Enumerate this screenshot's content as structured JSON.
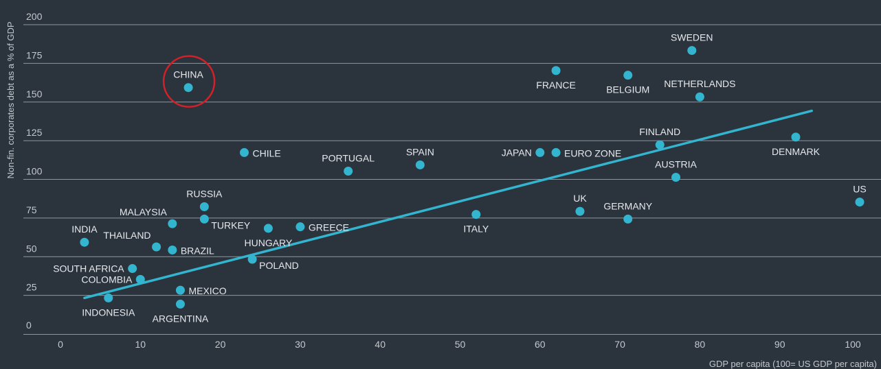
{
  "chart_data": {
    "type": "scatter",
    "xlabel": "GDP per capita (100= US GDP per capita)",
    "ylabel": "Non-fin. corporates debt as a % of GDP",
    "xlim": [
      -5,
      102
    ],
    "ylim": [
      -8,
      203
    ],
    "xticks": [
      0,
      10,
      20,
      30,
      40,
      50,
      60,
      70,
      80,
      90,
      100
    ],
    "yticks": [
      0,
      25,
      50,
      75,
      100,
      125,
      150,
      175,
      200
    ],
    "grid": true,
    "colors": {
      "background": "#2b333d",
      "point": "#33b5cf",
      "trend": "#33b5cf",
      "highlight": "#d12129",
      "grid": "#8e969e",
      "text": "#e6e9ec"
    },
    "highlight": "CHINA",
    "trendline": {
      "x": [
        3,
        94
      ],
      "y": [
        22,
        143
      ]
    },
    "points": [
      {
        "label": "CHINA",
        "x": 16,
        "y": 158,
        "pos": "top"
      },
      {
        "label": "SWEDEN",
        "x": 79,
        "y": 182,
        "pos": "top"
      },
      {
        "label": "FRANCE",
        "x": 62,
        "y": 169,
        "pos": "bottom"
      },
      {
        "label": "BELGIUM",
        "x": 71,
        "y": 166,
        "pos": "bottom"
      },
      {
        "label": "NETHERLANDS",
        "x": 80,
        "y": 152,
        "pos": "top"
      },
      {
        "label": "CHILE",
        "x": 23,
        "y": 116,
        "pos": "right"
      },
      {
        "label": "PORTUGAL",
        "x": 36,
        "y": 104,
        "pos": "top"
      },
      {
        "label": "SPAIN",
        "x": 45,
        "y": 108,
        "pos": "top"
      },
      {
        "label": "JAPAN",
        "x": 60,
        "y": 116,
        "pos": "left"
      },
      {
        "label": "EURO ZONE",
        "x": 62,
        "y": 116,
        "pos": "right"
      },
      {
        "label": "FINLAND",
        "x": 75,
        "y": 121,
        "pos": "top"
      },
      {
        "label": "DENMARK",
        "x": 92,
        "y": 126,
        "pos": "bottom"
      },
      {
        "label": "AUSTRIA",
        "x": 77,
        "y": 100,
        "pos": "top"
      },
      {
        "label": "US",
        "x": 100,
        "y": 84,
        "pos": "top"
      },
      {
        "label": "UK",
        "x": 65,
        "y": 78,
        "pos": "top"
      },
      {
        "label": "GERMANY",
        "x": 71,
        "y": 73,
        "pos": "top"
      },
      {
        "label": "ITALY",
        "x": 52,
        "y": 76,
        "pos": "bottom"
      },
      {
        "label": "RUSSIA",
        "x": 18,
        "y": 81,
        "pos": "top"
      },
      {
        "label": "MALAYSIA",
        "x": 14,
        "y": 70,
        "pos": "top-left"
      },
      {
        "label": "TURKEY",
        "x": 18,
        "y": 73,
        "pos": "bottom-right"
      },
      {
        "label": "HUNGARY",
        "x": 26,
        "y": 67,
        "pos": "bottom"
      },
      {
        "label": "GREECE",
        "x": 30,
        "y": 68,
        "pos": "right"
      },
      {
        "label": "INDIA",
        "x": 3,
        "y": 58,
        "pos": "top"
      },
      {
        "label": "THAILAND",
        "x": 12,
        "y": 55,
        "pos": "top-left"
      },
      {
        "label": "BRAZIL",
        "x": 14,
        "y": 53,
        "pos": "right"
      },
      {
        "label": "POLAND",
        "x": 24,
        "y": 47,
        "pos": "bottom-right"
      },
      {
        "label": "SOUTH AFRICA",
        "x": 9,
        "y": 41,
        "pos": "left"
      },
      {
        "label": "COLOMBIA",
        "x": 10,
        "y": 34,
        "pos": "left"
      },
      {
        "label": "MEXICO",
        "x": 15,
        "y": 27,
        "pos": "right"
      },
      {
        "label": "INDONESIA",
        "x": 6,
        "y": 22,
        "pos": "bottom"
      },
      {
        "label": "ARGENTINA",
        "x": 15,
        "y": 18,
        "pos": "bottom"
      }
    ]
  }
}
